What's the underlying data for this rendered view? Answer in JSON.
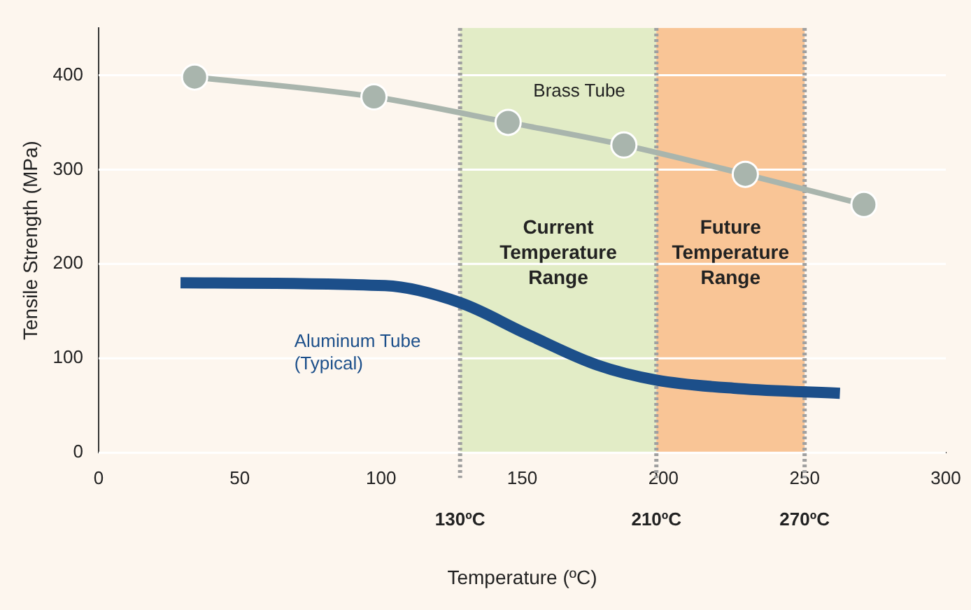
{
  "chart_data": {
    "type": "line",
    "xlabel": "Temperature (ºC)",
    "ylabel": "Tensile Strength (MPa)",
    "xlim": [
      0,
      300
    ],
    "xticks": [
      0,
      50,
      100,
      150,
      200,
      250,
      300
    ],
    "ylim": [
      0,
      450
    ],
    "yticks": [
      0,
      100,
      200,
      300,
      400
    ],
    "grid": "y",
    "series": [
      {
        "name": "Brass Tube",
        "color": "#a9b5ad",
        "marker": "circle",
        "x": [
          34,
          97.5,
          145,
          186,
          229,
          271
        ],
        "values": [
          398,
          377,
          350,
          326,
          295,
          263
        ]
      },
      {
        "name": "Aluminum Tube\n(Typical)",
        "color": "#1c4f8a",
        "marker": "none",
        "x": [
          29,
          101.5,
          128,
          151.5,
          176.5,
          197.5,
          226.5,
          262.5
        ],
        "values": [
          180,
          177,
          159,
          126,
          93,
          77,
          68,
          63
        ]
      }
    ],
    "bands": [
      {
        "axis": "x",
        "from": 128,
        "to": 197.5,
        "label": "Current\nTemperature\nRange",
        "color": "#e2ecc6"
      },
      {
        "axis": "x",
        "from": 197.5,
        "to": 250,
        "label": "Future\nTemperature\nRange",
        "color": "#f9c596"
      }
    ],
    "ref_lines": [
      {
        "axis": "x",
        "value": 128,
        "label": "130ºC",
        "color": "#a0a0a0",
        "line_style": "dotted"
      },
      {
        "axis": "x",
        "value": 197.5,
        "label": "210ºC",
        "color": "#a0a0a0",
        "line_style": "dotted"
      },
      {
        "axis": "x",
        "value": 250,
        "label": "270ºC",
        "color": "#a0a0a0",
        "line_style": "dotted"
      }
    ]
  }
}
